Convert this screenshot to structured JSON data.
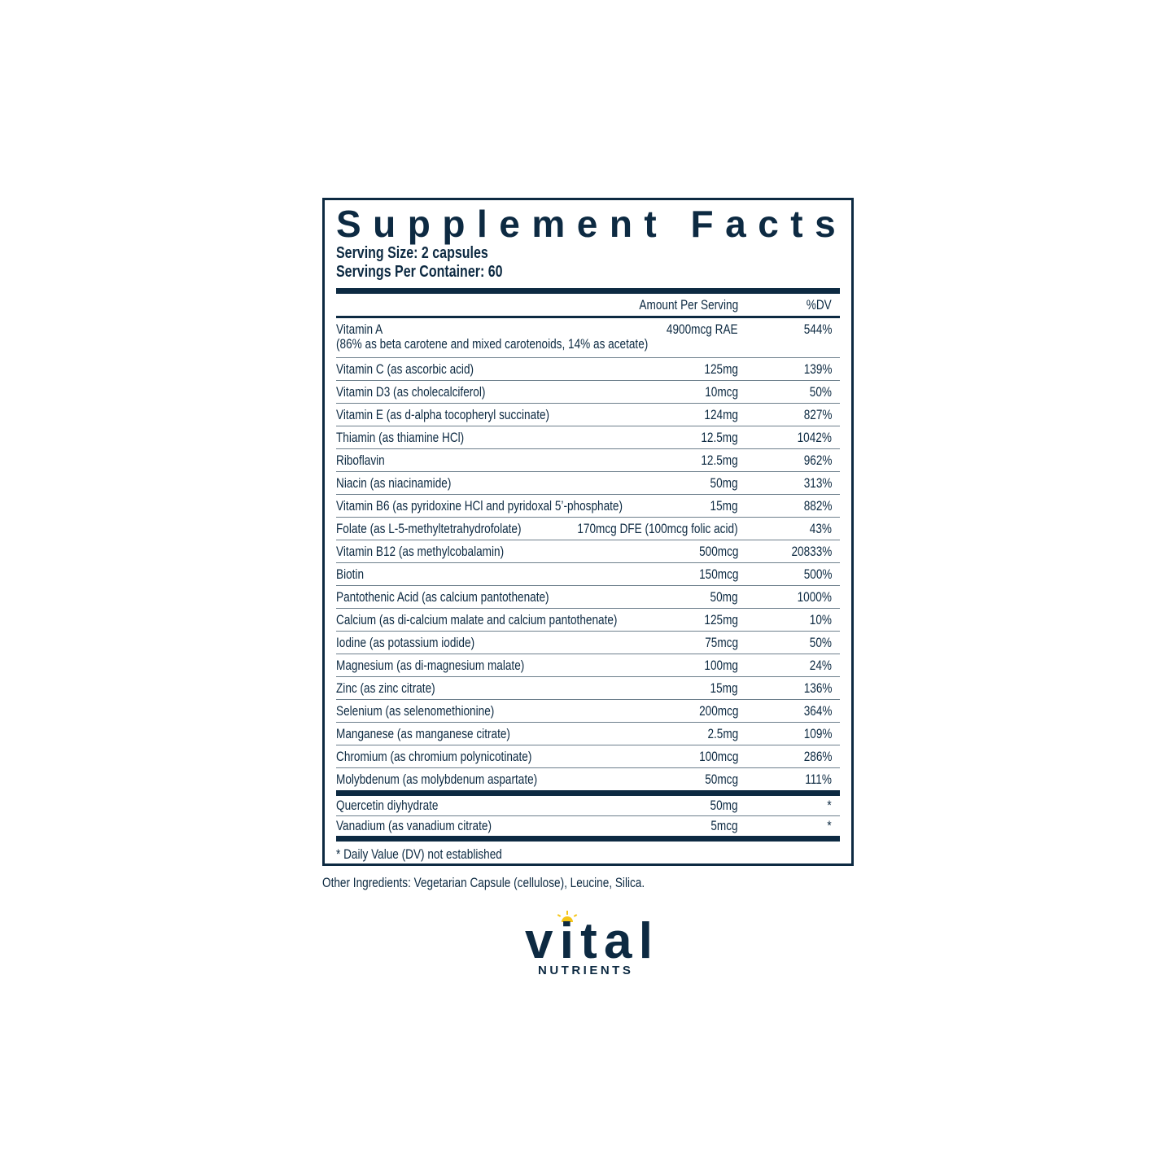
{
  "title": "Supplement Facts",
  "serving_size": "Serving Size: 2 capsules",
  "servings_per_container": "Servings Per Container: 60",
  "columns": {
    "amount": "Amount Per Serving",
    "dv": "%DV"
  },
  "vitamin_a": {
    "name": "Vitamin A",
    "detail": "(86% as beta carotene and mixed carotenoids, 14% as acetate)",
    "amount": "4900mcg RAE",
    "dv": "544%"
  },
  "rows": [
    {
      "name": "Vitamin C (as ascorbic acid)",
      "amount": "125mg",
      "dv": "139%"
    },
    {
      "name": "Vitamin D3 (as cholecalciferol)",
      "amount": "10mcg",
      "dv": "50%"
    },
    {
      "name": "Vitamin E (as d-alpha tocopheryl succinate)",
      "amount": "124mg",
      "dv": "827%"
    },
    {
      "name": "Thiamin (as thiamine HCl)",
      "amount": "12.5mg",
      "dv": "1042%"
    },
    {
      "name": "Riboflavin",
      "amount": "12.5mg",
      "dv": "962%"
    },
    {
      "name": "Niacin (as niacinamide)",
      "amount": "50mg",
      "dv": "313%"
    },
    {
      "name": "Vitamin B6 (as pyridoxine HCl and pyridoxal 5’-phosphate)",
      "amount": "15mg",
      "dv": "882%"
    },
    {
      "name": "Folate (as L-5-methyltetrahydrofolate)",
      "amount": "170mcg DFE (100mcg folic acid)",
      "dv": "43%"
    },
    {
      "name": "Vitamin B12 (as methylcobalamin)",
      "amount": "500mcg",
      "dv": "20833%"
    },
    {
      "name": "Biotin",
      "amount": "150mcg",
      "dv": "500%"
    },
    {
      "name": "Pantothenic Acid (as calcium pantothenate)",
      "amount": "50mg",
      "dv": "1000%"
    },
    {
      "name": "Calcium (as di-calcium malate and calcium pantothenate)",
      "amount": "125mg",
      "dv": "10%"
    },
    {
      "name": "Iodine (as potassium iodide)",
      "amount": "75mcg",
      "dv": "50%"
    },
    {
      "name": "Magnesium (as di-magnesium malate)",
      "amount": "100mg",
      "dv": "24%"
    },
    {
      "name": "Zinc (as zinc citrate)",
      "amount": "15mg",
      "dv": "136%"
    },
    {
      "name": "Selenium (as selenomethionine)",
      "amount": "200mcg",
      "dv": "364%"
    },
    {
      "name": "Manganese (as manganese citrate)",
      "amount": "2.5mg",
      "dv": "109%"
    },
    {
      "name": "Chromium (as chromium polynicotinate)",
      "amount": "100mcg",
      "dv": "286%"
    },
    {
      "name": "Molybdenum (as molybdenum aspartate)",
      "amount": "50mcg",
      "dv": "111%"
    }
  ],
  "other_rows": [
    {
      "name": "Quercetin diyhydrate",
      "amount": "50mg",
      "dv": "*"
    },
    {
      "name": "Vanadium (as vanadium citrate)",
      "amount": "5mcg",
      "dv": "*"
    }
  ],
  "footnote": "* Daily Value (DV) not established",
  "other_ingredients": "Other Ingredients: Vegetarian Capsule (cellulose), Leucine, Silica.",
  "logo": {
    "word": "vital",
    "sub": "NUTRIENTS"
  },
  "colors": {
    "navy": "#0d2a42",
    "sun": "#f5c518"
  }
}
